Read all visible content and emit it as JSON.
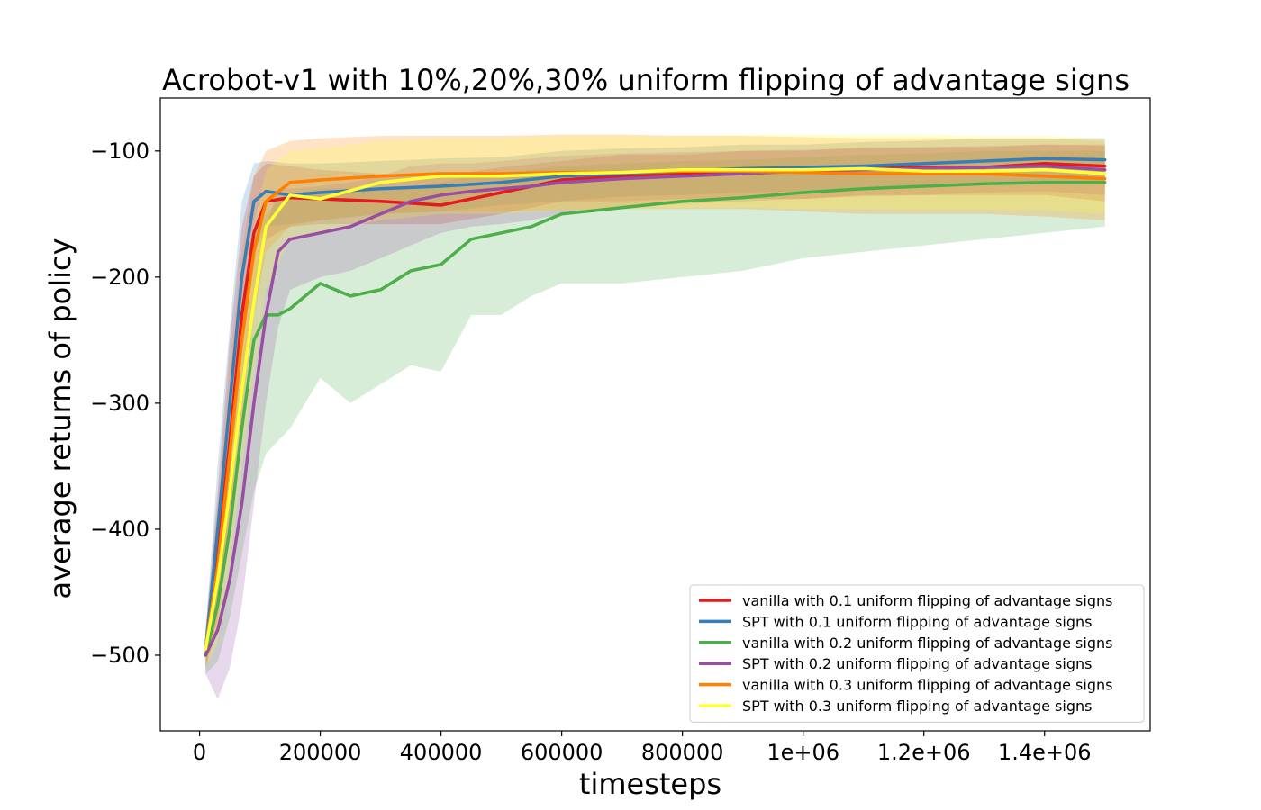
{
  "chart_data": {
    "type": "line",
    "title": "Acrobot-v1 with 10%,20%,30% uniform flipping of advantage signs",
    "xlabel": "timesteps",
    "ylabel": "average returns of policy",
    "xlim": [
      -65000,
      1575000
    ],
    "ylim": [
      -560,
      -58
    ],
    "xticks": [
      {
        "value": 0,
        "label": "0"
      },
      {
        "value": 200000,
        "label": "200000"
      },
      {
        "value": 400000,
        "label": "400000"
      },
      {
        "value": 600000,
        "label": "600000"
      },
      {
        "value": 800000,
        "label": "800000"
      },
      {
        "value": 1000000,
        "label": "1e+06"
      },
      {
        "value": 1200000,
        "label": "1.2e+06"
      },
      {
        "value": 1400000,
        "label": "1.4e+06"
      }
    ],
    "yticks": [
      {
        "value": -100,
        "label": "−100"
      },
      {
        "value": -200,
        "label": "−200"
      },
      {
        "value": -300,
        "label": "−300"
      },
      {
        "value": -400,
        "label": "−400"
      },
      {
        "value": -500,
        "label": "−500"
      }
    ],
    "grid": false,
    "legend_position": "lower-right",
    "series": [
      {
        "name": "vanilla with 0.1 uniform flipping of advantage signs",
        "color": "#e41a1c",
        "x": [
          10000,
          30000,
          50000,
          70000,
          90000,
          110000,
          150000,
          200000,
          300000,
          400000,
          500000,
          600000,
          700000,
          800000,
          900000,
          1000000,
          1100000,
          1200000,
          1300000,
          1400000,
          1500000
        ],
        "y": [
          -495,
          -420,
          -330,
          -230,
          -165,
          -140,
          -137,
          -138,
          -140,
          -143,
          -133,
          -123,
          -120,
          -118,
          -117,
          -115,
          -114,
          -113,
          -113,
          -110,
          -112
        ],
        "y_lower": [
          -510,
          -470,
          -390,
          -290,
          -210,
          -170,
          -160,
          -158,
          -158,
          -158,
          -150,
          -140,
          -140,
          -138,
          -138,
          -138,
          -135,
          -135,
          -135,
          -135,
          -140
        ],
        "y_upper": [
          -480,
          -370,
          -250,
          -160,
          -120,
          -110,
          -112,
          -115,
          -118,
          -120,
          -113,
          -108,
          -103,
          -103,
          -100,
          -100,
          -97,
          -97,
          -97,
          -95,
          -95
        ]
      },
      {
        "name": "SPT with 0.1 uniform flipping of advantage signs",
        "color": "#377eb8",
        "x": [
          10000,
          30000,
          50000,
          70000,
          90000,
          110000,
          150000,
          200000,
          300000,
          400000,
          500000,
          600000,
          700000,
          800000,
          900000,
          1000000,
          1100000,
          1200000,
          1300000,
          1400000,
          1500000
        ],
        "y": [
          -495,
          -400,
          -300,
          -200,
          -140,
          -132,
          -135,
          -133,
          -130,
          -128,
          -125,
          -120,
          -118,
          -116,
          -114,
          -113,
          -112,
          -110,
          -108,
          -106,
          -107
        ],
        "y_lower": [
          -510,
          -450,
          -360,
          -260,
          -180,
          -160,
          -158,
          -155,
          -150,
          -148,
          -143,
          -140,
          -136,
          -135,
          -133,
          -132,
          -130,
          -128,
          -125,
          -124,
          -125
        ],
        "y_upper": [
          -480,
          -350,
          -240,
          -140,
          -110,
          -108,
          -110,
          -110,
          -108,
          -106,
          -105,
          -100,
          -98,
          -97,
          -95,
          -95,
          -93,
          -92,
          -90,
          -90,
          -90
        ]
      },
      {
        "name": "vanilla with 0.2 uniform flipping of advantage signs",
        "color": "#4daf4a",
        "x": [
          10000,
          30000,
          50000,
          70000,
          90000,
          110000,
          130000,
          150000,
          200000,
          250000,
          300000,
          350000,
          400000,
          450000,
          500000,
          550000,
          600000,
          700000,
          800000,
          900000,
          1000000,
          1100000,
          1200000,
          1300000,
          1400000,
          1500000
        ],
        "y": [
          -500,
          -460,
          -400,
          -320,
          -250,
          -230,
          -230,
          -225,
          -205,
          -215,
          -210,
          -195,
          -190,
          -170,
          -165,
          -160,
          -150,
          -145,
          -140,
          -137,
          -133,
          -130,
          -128,
          -126,
          -125,
          -125
        ],
        "y_lower": [
          -515,
          -505,
          -470,
          -420,
          -370,
          -340,
          -330,
          -320,
          -280,
          -300,
          -285,
          -270,
          -275,
          -230,
          -230,
          -215,
          -205,
          -205,
          -200,
          -195,
          -185,
          -180,
          -175,
          -170,
          -165,
          -160
        ],
        "y_upper": [
          -485,
          -420,
          -340,
          -240,
          -180,
          -150,
          -140,
          -135,
          -130,
          -130,
          -130,
          -128,
          -125,
          -120,
          -118,
          -115,
          -112,
          -110,
          -108,
          -107,
          -105,
          -103,
          -102,
          -100,
          -100,
          -100
        ]
      },
      {
        "name": "SPT with 0.2 uniform flipping of advantage signs",
        "color": "#984ea3",
        "x": [
          10000,
          30000,
          50000,
          70000,
          90000,
          110000,
          130000,
          150000,
          200000,
          250000,
          300000,
          350000,
          400000,
          450000,
          500000,
          550000,
          600000,
          700000,
          800000,
          900000,
          1000000,
          1100000,
          1200000,
          1300000,
          1400000,
          1500000
        ],
        "y": [
          -500,
          -480,
          -440,
          -380,
          -300,
          -230,
          -180,
          -170,
          -165,
          -160,
          -150,
          -140,
          -135,
          -132,
          -130,
          -128,
          -125,
          -122,
          -120,
          -118,
          -116,
          -115,
          -114,
          -113,
          -112,
          -115
        ],
        "y_lower": [
          -515,
          -535,
          -510,
          -460,
          -380,
          -300,
          -240,
          -210,
          -200,
          -195,
          -185,
          -175,
          -165,
          -160,
          -158,
          -155,
          -150,
          -145,
          -142,
          -140,
          -138,
          -136,
          -135,
          -133,
          -132,
          -135
        ],
        "y_upper": [
          -485,
          -430,
          -370,
          -300,
          -220,
          -160,
          -130,
          -130,
          -128,
          -125,
          -120,
          -112,
          -110,
          -110,
          -108,
          -106,
          -104,
          -102,
          -101,
          -100,
          -99,
          -98,
          -97,
          -96,
          -95,
          -96
        ]
      },
      {
        "name": "vanilla with 0.3 uniform flipping of advantage signs",
        "color": "#ff7f00",
        "x": [
          10000,
          30000,
          50000,
          70000,
          90000,
          110000,
          150000,
          200000,
          300000,
          400000,
          500000,
          600000,
          700000,
          800000,
          900000,
          1000000,
          1100000,
          1200000,
          1300000,
          1400000,
          1500000
        ],
        "y": [
          -495,
          -430,
          -340,
          -250,
          -180,
          -140,
          -125,
          -123,
          -120,
          -118,
          -118,
          -117,
          -117,
          -116,
          -116,
          -117,
          -118,
          -118,
          -118,
          -120,
          -122
        ],
        "y_lower": [
          -510,
          -480,
          -400,
          -310,
          -230,
          -180,
          -160,
          -155,
          -150,
          -148,
          -148,
          -147,
          -146,
          -146,
          -146,
          -148,
          -150,
          -150,
          -150,
          -152,
          -155
        ],
        "y_upper": [
          -480,
          -380,
          -270,
          -180,
          -120,
          -100,
          -92,
          -90,
          -88,
          -88,
          -88,
          -87,
          -87,
          -88,
          -88,
          -89,
          -90,
          -90,
          -90,
          -90,
          -92
        ]
      },
      {
        "name": "SPT with 0.3 uniform flipping of advantage signs",
        "color": "#ffff33",
        "x": [
          10000,
          30000,
          50000,
          70000,
          90000,
          110000,
          150000,
          200000,
          300000,
          400000,
          500000,
          600000,
          700000,
          800000,
          900000,
          1000000,
          1100000,
          1200000,
          1300000,
          1400000,
          1500000
        ],
        "y": [
          -495,
          -440,
          -370,
          -290,
          -220,
          -160,
          -135,
          -138,
          -125,
          -120,
          -120,
          -118,
          -117,
          -115,
          -115,
          -115,
          -114,
          -116,
          -116,
          -115,
          -118
        ],
        "y_lower": [
          -510,
          -490,
          -430,
          -350,
          -280,
          -210,
          -170,
          -165,
          -155,
          -150,
          -150,
          -147,
          -146,
          -145,
          -145,
          -146,
          -146,
          -147,
          -147,
          -147,
          -150
        ],
        "y_upper": [
          -480,
          -390,
          -310,
          -230,
          -160,
          -115,
          -100,
          -98,
          -92,
          -90,
          -90,
          -88,
          -88,
          -88,
          -87,
          -87,
          -87,
          -87,
          -88,
          -88,
          -90
        ]
      }
    ]
  }
}
